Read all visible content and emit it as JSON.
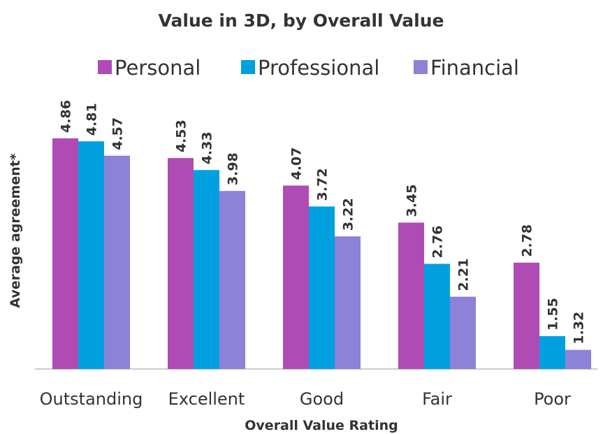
{
  "chart_data": {
    "type": "bar",
    "title": "Value in 3D, by Overall Value",
    "x_label": "Overall Value Rating",
    "y_label": "Average agreement*",
    "categories": [
      "Outstanding",
      "Excellent",
      "Good",
      "Fair",
      "Poor"
    ],
    "series": [
      {
        "name": "Personal",
        "color": "#b04ab4",
        "values": [
          4.86,
          4.53,
          4.07,
          3.45,
          2.78
        ]
      },
      {
        "name": "Professional",
        "color": "#00a0e0",
        "values": [
          4.81,
          4.33,
          3.72,
          2.76,
          1.55
        ]
      },
      {
        "name": "Financial",
        "color": "#8c82d8",
        "values": [
          4.57,
          3.98,
          3.22,
          2.21,
          1.32
        ]
      }
    ],
    "ylim": [
      1,
      5
    ],
    "legend": "top"
  }
}
